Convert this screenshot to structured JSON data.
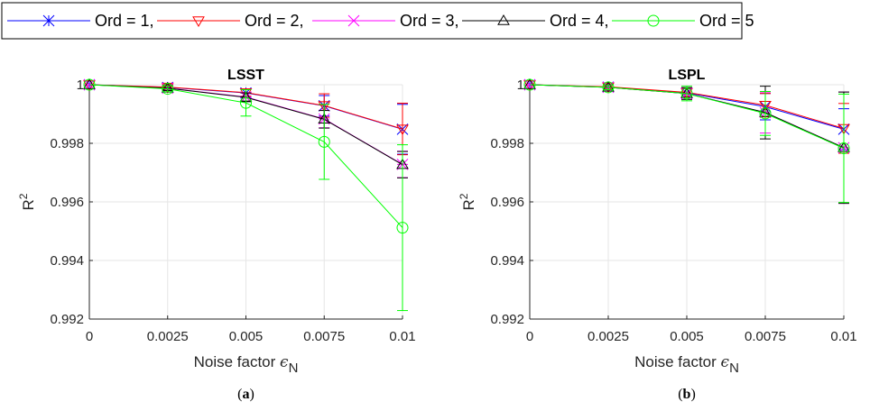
{
  "legend": {
    "entries": [
      {
        "label": "Ord = 1,",
        "color": "#0000ff",
        "marker": "asterisk-x"
      },
      {
        "label": "Ord = 2,",
        "color": "#ff0000",
        "marker": "triangle-down"
      },
      {
        "label": "Ord = 3,",
        "color": "#ff00ff",
        "marker": "asterisk"
      },
      {
        "label": "Ord = 4,",
        "color": "#000000",
        "marker": "triangle-up"
      },
      {
        "label": "Ord = 5",
        "color": "#00ff00",
        "marker": "circle"
      }
    ]
  },
  "chart_data": [
    {
      "type": "line",
      "title": "LSST",
      "xlabel": "Noise factor",
      "xlabel_symbol": "ϵ",
      "xlabel_sub": "N",
      "ylabel": "R",
      "ylabel_sup": "2",
      "panel_label": "a",
      "x": [
        0,
        0.0025,
        0.005,
        0.0075,
        0.01
      ],
      "xticks": [
        "0",
        "0.0025",
        "0.005",
        "0.0075",
        "0.01"
      ],
      "yticks": [
        "0.992",
        "0.994",
        "0.996",
        "0.998",
        "1"
      ],
      "ylim": [
        0.992,
        1.0
      ],
      "xlim": [
        0,
        0.01
      ],
      "grid": true,
      "series": [
        {
          "name": "Ord = 1",
          "values": [
            1.0,
            0.99991,
            0.99972,
            0.99928,
            0.99848
          ],
          "err": [
            0,
            8e-05,
            0.00012,
            0.00035,
            0.00085
          ]
        },
        {
          "name": "Ord = 2",
          "values": [
            1.0,
            0.99992,
            0.99973,
            0.99929,
            0.99849
          ],
          "err": [
            0,
            8e-05,
            0.00012,
            0.0004,
            0.00088
          ]
        },
        {
          "name": "Ord = 3",
          "values": [
            1.0,
            0.99988,
            0.99958,
            0.99883,
            0.99728
          ],
          "err": [
            0,
            8e-05,
            0.00015,
            0.0003,
            0.00045
          ]
        },
        {
          "name": "Ord = 4",
          "values": [
            1.0,
            0.99988,
            0.99957,
            0.99882,
            0.99727
          ],
          "err": [
            0,
            8e-05,
            0.00015,
            0.0003,
            0.00045
          ]
        },
        {
          "name": "Ord = 5",
          "values": [
            1.0,
            0.99986,
            0.99938,
            0.99805,
            0.99512
          ],
          "err": [
            0,
            0.0001,
            0.00045,
            0.00128,
            0.00283
          ]
        }
      ]
    },
    {
      "type": "line",
      "title": "LSPL",
      "xlabel": "Noise factor",
      "xlabel_symbol": "ϵ",
      "xlabel_sub": "N",
      "ylabel": "R",
      "ylabel_sup": "2",
      "panel_label": "b",
      "x": [
        0,
        0.0025,
        0.005,
        0.0075,
        0.01
      ],
      "xticks": [
        "0",
        "0.0025",
        "0.005",
        "0.0075",
        "0.01"
      ],
      "yticks": [
        "0.992",
        "0.994",
        "0.996",
        "0.998",
        "1"
      ],
      "ylim": [
        0.992,
        1.0
      ],
      "xlim": [
        0,
        0.01
      ],
      "grid": true,
      "series": [
        {
          "name": "Ord = 1",
          "values": [
            1.0,
            0.99992,
            0.99972,
            0.99925,
            0.99848
          ],
          "err": [
            0,
            8e-05,
            0.00015,
            0.00045,
            0.0007
          ]
        },
        {
          "name": "Ord = 2",
          "values": [
            1.0,
            0.99993,
            0.99974,
            0.9993,
            0.99851
          ],
          "err": [
            0,
            8e-05,
            0.00015,
            0.0004,
            0.00085
          ]
        },
        {
          "name": "Ord = 3",
          "values": [
            1.0,
            0.99991,
            0.9997,
            0.99905,
            0.99785
          ],
          "err": [
            0,
            8e-05,
            0.0002,
            0.0007,
            0.0019
          ]
        },
        {
          "name": "Ord = 4",
          "values": [
            1.0,
            0.99991,
            0.9997,
            0.99905,
            0.99785
          ],
          "err": [
            0,
            8e-05,
            0.0002,
            0.0009,
            0.0019
          ]
        },
        {
          "name": "Ord = 5",
          "values": [
            1.0,
            0.99991,
            0.9997,
            0.99902,
            0.99783
          ],
          "err": [
            0,
            8e-05,
            0.00025,
            0.00075,
            0.00185
          ]
        }
      ]
    }
  ]
}
